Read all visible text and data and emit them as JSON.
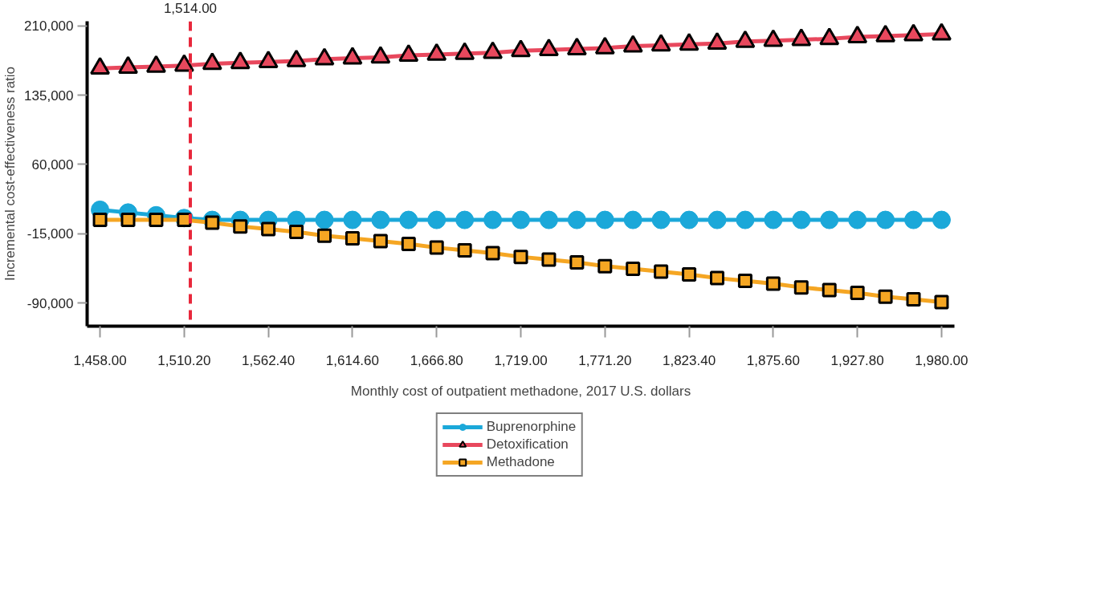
{
  "chart_data": {
    "type": "line",
    "xlabel": "Monthly cost of outpatient methadone, 2017 U.S. dollars",
    "ylabel": "Incremental cost-effectiveness ratio",
    "x": [
      1458,
      1475.4,
      1492.8,
      1510.2,
      1527.6,
      1545,
      1562.4,
      1579.8,
      1597.2,
      1614.6,
      1632,
      1649.4,
      1666.8,
      1684.2,
      1701.6,
      1719,
      1736.4,
      1753.8,
      1771.2,
      1788.6,
      1806,
      1823.4,
      1840.8,
      1858.2,
      1875.6,
      1893,
      1910.4,
      1927.8,
      1945.2,
      1962.6,
      1980
    ],
    "series": [
      {
        "name": "Buprenorphine",
        "color": "#1ba8d9",
        "marker": "circle",
        "values": [
          11000,
          8000,
          5000,
          2000,
          0,
          0,
          0,
          0,
          0,
          0,
          0,
          0,
          0,
          0,
          0,
          0,
          0,
          0,
          0,
          0,
          0,
          0,
          0,
          0,
          0,
          0,
          0,
          0,
          0,
          0,
          0
        ]
      },
      {
        "name": "Detoxification",
        "color": "#e8485d",
        "marker": "triangle",
        "values": [
          164000,
          165000,
          166000,
          167000,
          169000,
          170000,
          171000,
          172000,
          174000,
          175000,
          176000,
          178000,
          179000,
          180000,
          181000,
          183000,
          184000,
          185000,
          186000,
          188000,
          189000,
          190000,
          191000,
          193000,
          194000,
          195000,
          196000,
          198000,
          199000,
          200000,
          201000
        ]
      },
      {
        "name": "Methadone",
        "color": "#f5a623",
        "marker": "square",
        "values": [
          0,
          0,
          0,
          0,
          -3000,
          -7000,
          -10000,
          -13000,
          -17000,
          -20000,
          -23000,
          -26000,
          -30000,
          -33000,
          -36000,
          -40000,
          -43000,
          -46000,
          -50000,
          -53000,
          -56000,
          -59000,
          -63000,
          -66000,
          -69000,
          -73000,
          -76000,
          -79000,
          -83000,
          -86000,
          -89000
        ]
      }
    ],
    "xlim": [
      1450,
      1988
    ],
    "xticks": [
      {
        "value": 1458,
        "label": "1,458.00"
      },
      {
        "value": 1510.2,
        "label": "1,510.20"
      },
      {
        "value": 1562.4,
        "label": "1,562.40"
      },
      {
        "value": 1614.6,
        "label": "1,614.60"
      },
      {
        "value": 1666.8,
        "label": "1,666.80"
      },
      {
        "value": 1719,
        "label": "1,719.00"
      },
      {
        "value": 1771.2,
        "label": "1,771.20"
      },
      {
        "value": 1823.4,
        "label": "1,823.40"
      },
      {
        "value": 1875.6,
        "label": "1,875.60"
      },
      {
        "value": 1927.8,
        "label": "1,927.80"
      },
      {
        "value": 1980,
        "label": "1,980.00"
      }
    ],
    "ylim": [
      -115000,
      215000
    ],
    "yticks": [
      {
        "value": -90000,
        "label": "-90,000"
      },
      {
        "value": -15000,
        "label": "-15,000"
      },
      {
        "value": 60000,
        "label": "60,000"
      },
      {
        "value": 135000,
        "label": "135,000"
      },
      {
        "value": 210000,
        "label": "210,000"
      }
    ],
    "ref_lines": [
      {
        "axis": "x",
        "value": 1514,
        "label": "1,514.00",
        "color": "#e8283c",
        "line_style": "dashed"
      }
    ],
    "grid": false,
    "legend": "bottom",
    "line_style": "solid"
  }
}
